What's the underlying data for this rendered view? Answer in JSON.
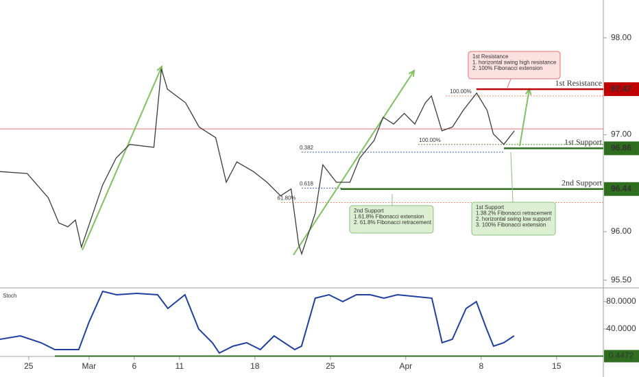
{
  "chart_data": {
    "type": "line",
    "x": [
      -1.9,
      -0.1,
      1.3,
      2.0,
      2.6,
      3.1,
      3.5,
      4.9,
      5.8,
      6.7,
      8.3,
      8.8,
      9.2,
      10.4,
      11.3,
      12.4,
      13.1,
      13.8,
      14.9,
      15.8,
      16.7,
      17.4,
      17.9,
      18.1,
      19.0,
      19.5,
      20.4,
      21.3,
      21.95,
      22.9,
      23.5,
      24.2,
      24.9,
      25.6,
      26.3,
      26.7,
      27.4,
      28.1,
      28.8,
      29.7,
      30.4,
      30.8,
      31.5,
      32.2
    ],
    "values": [
      96.62,
      96.6,
      96.35,
      96.09,
      96.05,
      96.12,
      95.84,
      96.48,
      96.76,
      96.9,
      96.87,
      97.68,
      97.47,
      97.33,
      97.08,
      96.97,
      96.51,
      96.72,
      96.62,
      96.51,
      96.37,
      96.44,
      95.87,
      95.77,
      96.19,
      96.69,
      96.51,
      96.51,
      96.76,
      96.94,
      97.18,
      97.11,
      97.22,
      97.11,
      97.33,
      97.4,
      97.04,
      97.08,
      97.25,
      97.43,
      97.25,
      97.01,
      96.9,
      97.04
    ],
    "color": "#3a3a3a",
    "xlim": [
      -1.9,
      38.1
    ],
    "xticks": [
      {
        "value": 0,
        "label": "25"
      },
      {
        "value": 4,
        "label": "Mar"
      },
      {
        "value": 7,
        "label": "6"
      },
      {
        "value": 10,
        "label": "11"
      },
      {
        "value": 15,
        "label": "18"
      },
      {
        "value": 20,
        "label": "25"
      },
      {
        "value": 25,
        "label": "Apr"
      },
      {
        "value": 30,
        "label": "8"
      },
      {
        "value": 35,
        "label": "15"
      }
    ],
    "ylim": [
      95.42,
      98.39
    ],
    "yticks": [
      {
        "value": 98,
        "label": "98.00"
      },
      {
        "value": 97,
        "label": "97.00"
      },
      {
        "value": 96,
        "label": "96.00"
      },
      {
        "value": 95.5,
        "label": "95.50"
      }
    ],
    "price_line": {
      "value": 97.06,
      "color": "#e06060"
    },
    "levels": [
      {
        "name": "1st Resistance",
        "value": 97.47,
        "color": "#c00000"
      },
      {
        "name": "1st Support",
        "value": 96.86,
        "color": "#2e6e1e"
      },
      {
        "name": "2nd Support",
        "value": 96.44,
        "color": "#2e6e1e"
      }
    ],
    "fib_levels": [
      {
        "label": "100.00%",
        "value": 97.4,
        "color": "#f08a60"
      },
      {
        "label": "100.00%",
        "value": 96.9,
        "color": "#5a8a2a"
      },
      {
        "label": "0.382",
        "value": 96.82,
        "color": "#3a5fbf"
      },
      {
        "label": "0.618",
        "value": 96.45,
        "color": "#3a5fbf"
      },
      {
        "label": "61.80%",
        "value": 96.3,
        "color": "#f08a60"
      }
    ],
    "notes": [
      {
        "lines": [
          "1st Resistance",
          "1.  horizontal swing high resistance",
          "2. 100% Fibonacci extension"
        ]
      },
      {
        "lines": [
          "2nd Support",
          "1.61.8% Fibonacci extension",
          "2. 61.8% Fibonacci retracement"
        ]
      },
      {
        "lines": [
          "1st Support",
          "1.38.2% Fibonacci retracement",
          "2. horizontal swing low  support",
          "3. 100% Fibonacci extension"
        ]
      }
    ],
    "stoch": {
      "name": "Stoch",
      "color": "#1f3fa0",
      "x": [
        -1.91,
        -0.55,
        0.82,
        1.73,
        2.64,
        3.32,
        4.0,
        4.91,
        5.82,
        7.18,
        8.55,
        9.23,
        10.36,
        11.27,
        12.18,
        12.64,
        13.55,
        14.45,
        15.36,
        16.27,
        17.64,
        18.09,
        19.0,
        19.91,
        20.82,
        21.73,
        22.64,
        23.55,
        24.45,
        25.36,
        26.73,
        27.41,
        28.09,
        29.0,
        29.68,
        30.36,
        30.82,
        31.5,
        32.18
      ],
      "values": [
        25,
        30,
        20,
        10,
        10,
        10,
        50,
        95,
        90,
        92,
        90,
        70,
        90,
        40,
        20,
        5,
        15,
        20,
        10,
        30,
        10,
        15,
        85,
        90,
        80,
        90,
        90,
        85,
        90,
        88,
        85,
        20,
        25,
        70,
        80,
        40,
        15,
        20,
        30
      ],
      "ylim": [
        0,
        100
      ],
      "yticks": [
        {
          "value": 80,
          "label": "80.0000"
        },
        {
          "value": 40,
          "label": "40.0000"
        }
      ],
      "level": {
        "value": 0.4472,
        "color": "#2e6e1e"
      }
    }
  }
}
